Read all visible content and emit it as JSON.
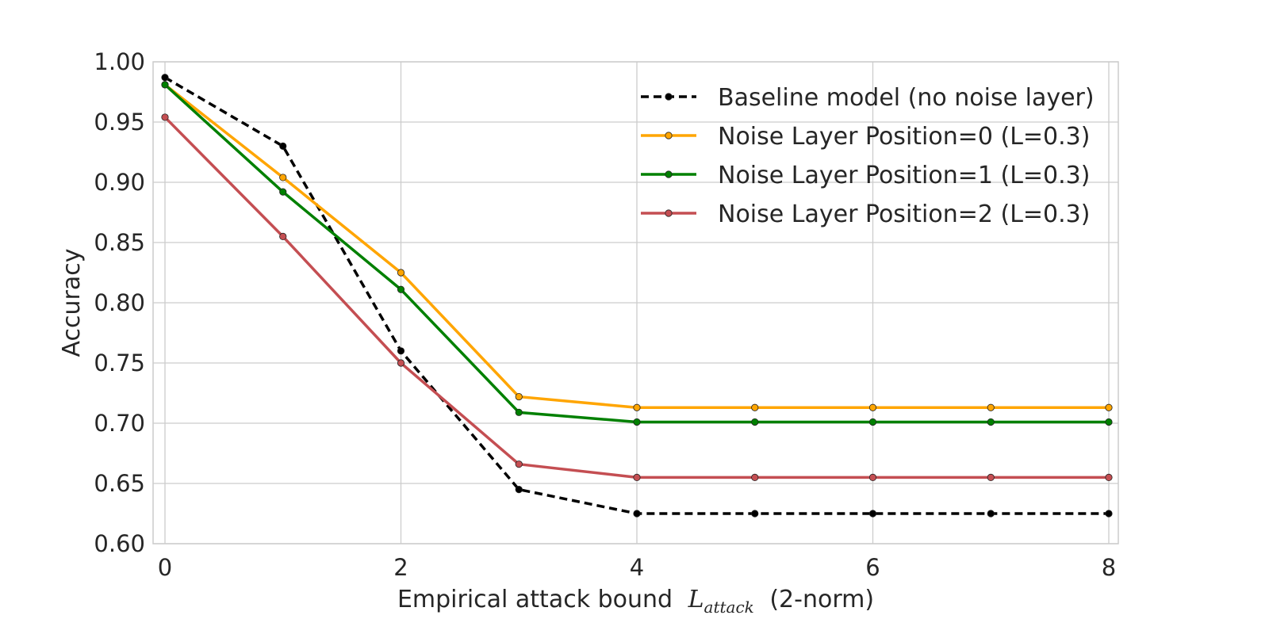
{
  "chart_data": {
    "type": "line",
    "xlabel": "Empirical attack bound",
    "xlabel_symbol": "L",
    "xlabel_symbol_sub": "attack",
    "xlabel_suffix": "(2-norm)",
    "ylabel": "Accuracy",
    "xlim": [
      0,
      8
    ],
    "ylim": [
      0.6,
      1.0
    ],
    "xticks": [
      "0",
      "2",
      "4",
      "6",
      "8"
    ],
    "yticks": [
      "0.60",
      "0.65",
      "0.70",
      "0.75",
      "0.80",
      "0.85",
      "0.90",
      "0.95",
      "1.00"
    ],
    "grid": true,
    "legend_position": "top-right",
    "x": [
      0,
      1,
      2,
      3,
      4,
      5,
      6,
      7,
      8
    ],
    "series": [
      {
        "name": "Baseline model (no noise layer)",
        "color": "#000000",
        "line_style": "dashed",
        "values": [
          0.987,
          0.93,
          0.76,
          0.645,
          0.625,
          0.625,
          0.625,
          0.625,
          0.625
        ]
      },
      {
        "name": "Noise Layer Position=0 (L=0.3)",
        "color": "#FFA500",
        "line_style": "solid",
        "values": [
          0.981,
          0.904,
          0.825,
          0.722,
          0.713,
          0.713,
          0.713,
          0.713,
          0.713
        ]
      },
      {
        "name": "Noise Layer Position=1 (L=0.3)",
        "color": "#008000",
        "line_style": "solid",
        "values": [
          0.981,
          0.892,
          0.811,
          0.709,
          0.701,
          0.701,
          0.701,
          0.701,
          0.701
        ]
      },
      {
        "name": "Noise Layer Position=2 (L=0.3)",
        "color": "#C44E52",
        "line_style": "solid",
        "values": [
          0.954,
          0.855,
          0.75,
          0.666,
          0.655,
          0.655,
          0.655,
          0.655,
          0.655
        ]
      }
    ]
  }
}
